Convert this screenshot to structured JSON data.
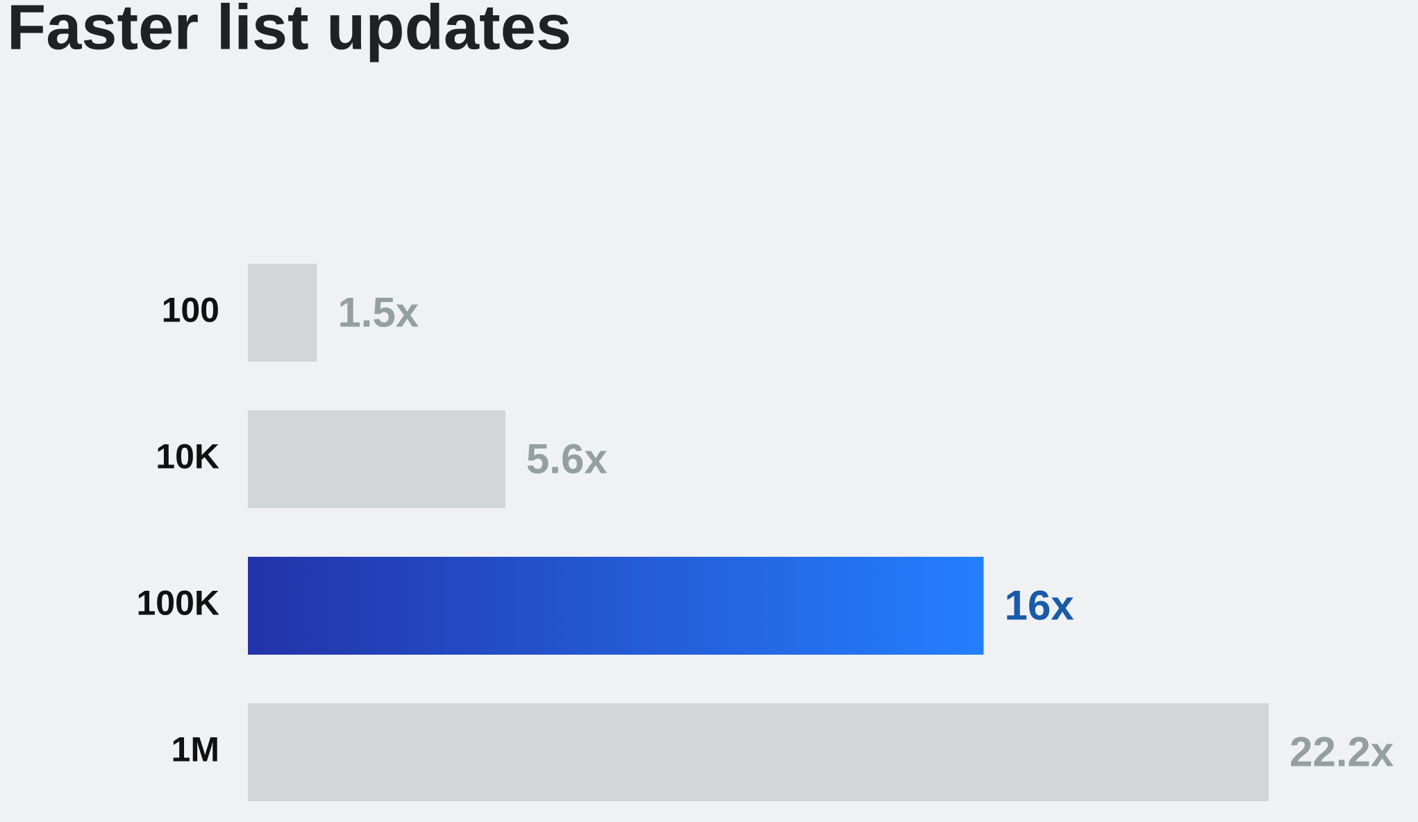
{
  "chart_data": {
    "type": "hbar",
    "title": "Faster list updates",
    "categories": [
      "100",
      "10K",
      "100K",
      "1M"
    ],
    "values": [
      1.5,
      5.6,
      16,
      22.2
    ],
    "value_labels": [
      "1.5x",
      "5.6x",
      "16x",
      "22.2x"
    ],
    "colors": [
      "#d3d6d7",
      "#d3d6d7",
      [
        "#2333a8",
        "#247fff"
      ],
      "#d3d6d7"
    ],
    "label_colors": [
      "#94a09d",
      "#94a09d",
      "#1a5aa8",
      "#94a09d"
    ]
  }
}
